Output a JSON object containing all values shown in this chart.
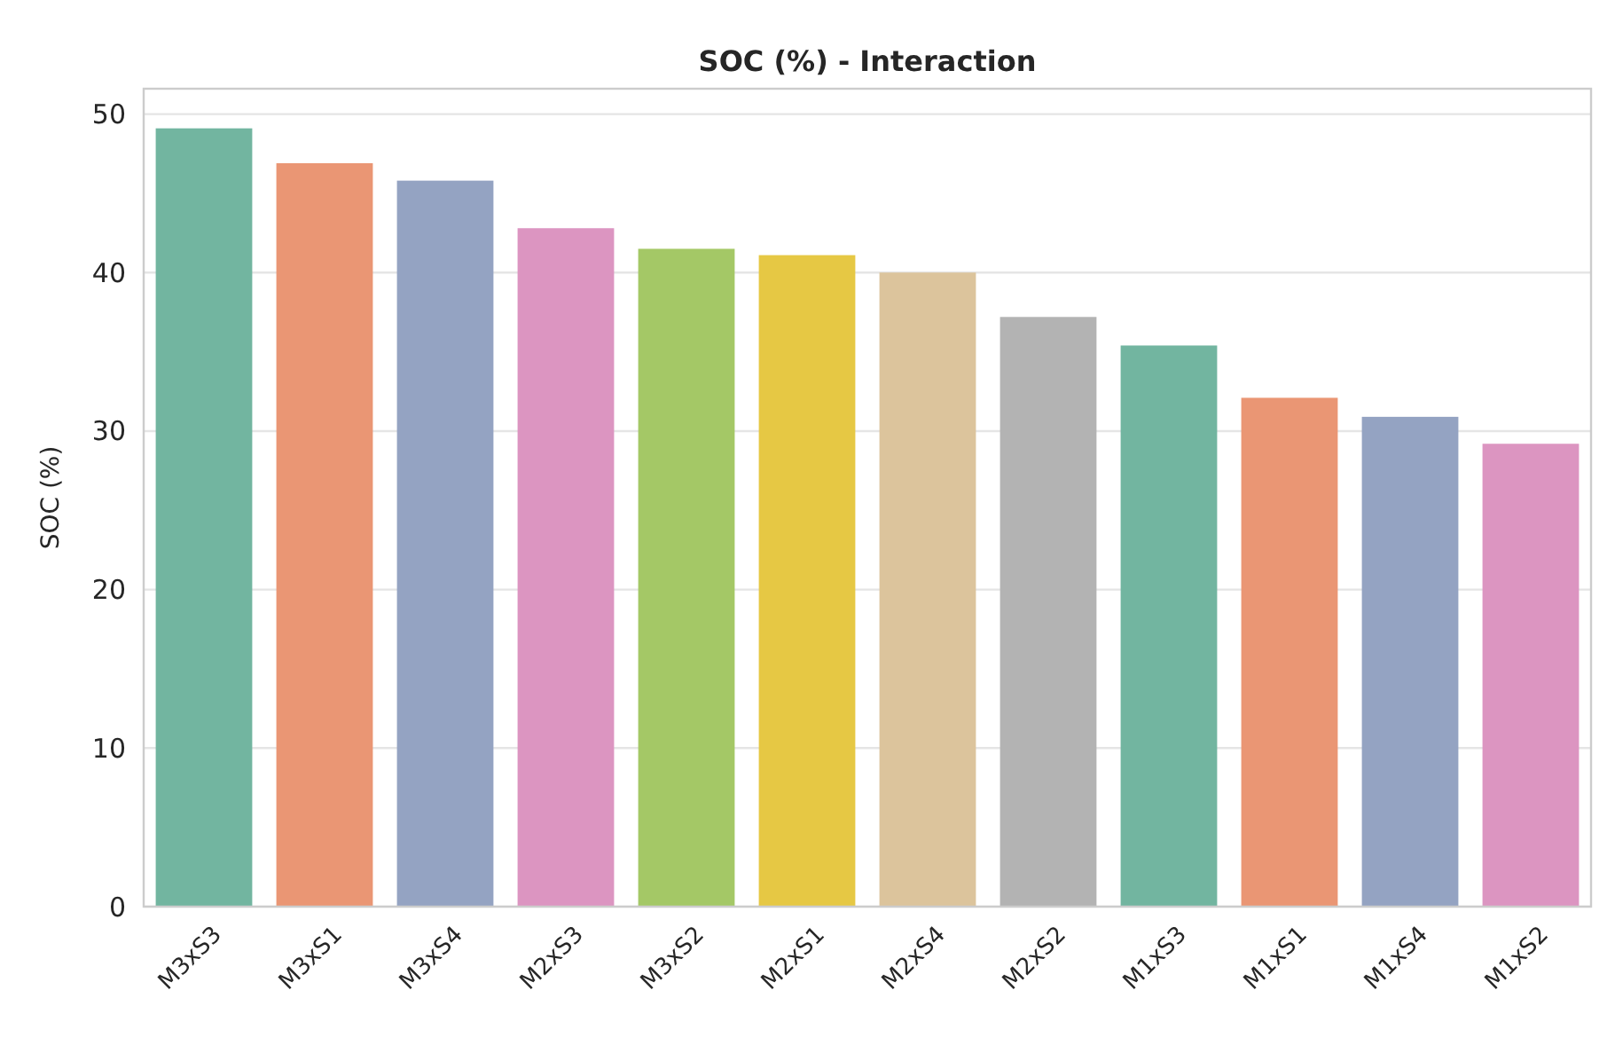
{
  "chart_data": {
    "type": "bar",
    "title": "SOC (%) - Interaction",
    "ylabel": "SOC (%)",
    "categories": [
      "M3xS3",
      "M3xS1",
      "M3xS4",
      "M2xS3",
      "M3xS2",
      "M2xS1",
      "M2xS4",
      "M2xS2",
      "M1xS3",
      "M1xS1",
      "M1xS4",
      "M1xS2"
    ],
    "values": [
      49.1,
      46.9,
      45.8,
      42.8,
      41.5,
      41.1,
      40.0,
      37.2,
      35.4,
      32.1,
      30.9,
      29.2
    ],
    "colors": [
      "#72b5a0",
      "#ea9674",
      "#94a3c2",
      "#dc95c1",
      "#a4c866",
      "#e6c844",
      "#dcc49c",
      "#b3b3b3",
      "#72b5a0",
      "#ea9674",
      "#94a3c2",
      "#dc95c1"
    ],
    "ylim": [
      0,
      51.6
    ],
    "yticks": [
      0,
      10,
      20,
      30,
      40,
      50
    ],
    "grid": "y"
  }
}
